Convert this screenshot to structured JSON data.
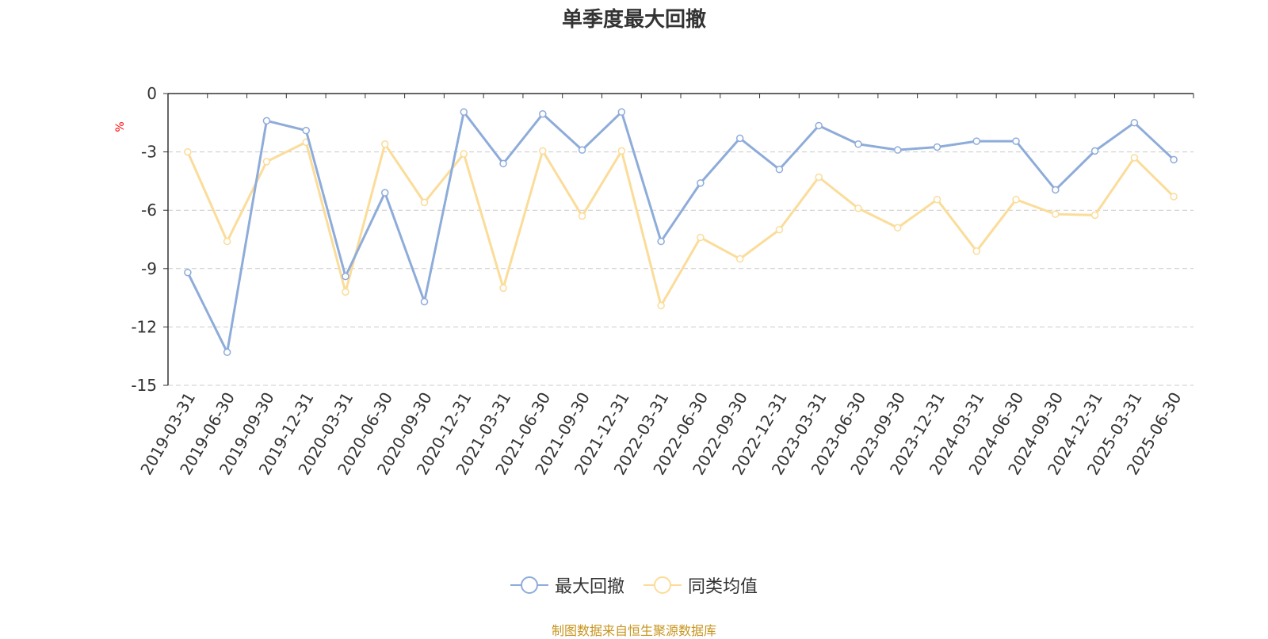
{
  "title": "单季度最大回撤",
  "source_note": "制图数据来自恒生聚源数据库",
  "colors": {
    "series1": "#8eacda",
    "series2": "#fbdc99",
    "grid": "#cccccc",
    "axis": "#333333",
    "unit": "#ff0000",
    "source": "#c8951e"
  },
  "chart_data": {
    "type": "line",
    "title": "单季度最大回撤",
    "ylabel": "%",
    "ylim": [
      -15,
      0
    ],
    "yticks": [
      0,
      -3,
      -6,
      -9,
      -12,
      -15
    ],
    "grid": "horizontal dashed",
    "legend_position": "bottom",
    "x": [
      "2019-03-31",
      "2019-06-30",
      "2019-09-30",
      "2019-12-31",
      "2020-03-31",
      "2020-06-30",
      "2020-09-30",
      "2020-12-31",
      "2021-03-31",
      "2021-06-30",
      "2021-09-30",
      "2021-12-31",
      "2022-03-31",
      "2022-06-30",
      "2022-09-30",
      "2022-12-31",
      "2023-03-31",
      "2023-06-30",
      "2023-09-30",
      "2023-12-31",
      "2024-03-31",
      "2024-06-30",
      "2024-09-30",
      "2024-12-31",
      "2025-03-31",
      "2025-06-30"
    ],
    "series": [
      {
        "name": "最大回撤",
        "values": [
          -9.2,
          -13.3,
          -1.4,
          -1.9,
          -9.4,
          -5.1,
          -10.7,
          -0.95,
          -3.6,
          -1.05,
          -2.9,
          -0.95,
          -7.6,
          -4.6,
          -2.3,
          -3.9,
          -1.65,
          -2.6,
          -2.9,
          -2.75,
          -2.45,
          -2.45,
          -4.95,
          -2.95,
          -1.5,
          -3.4
        ]
      },
      {
        "name": "同类均值",
        "values": [
          -3.0,
          -7.6,
          -3.5,
          -2.5,
          -10.2,
          -2.6,
          -5.6,
          -3.1,
          -10.0,
          -2.95,
          -6.3,
          -2.95,
          -10.9,
          -7.4,
          -8.5,
          -7.0,
          -4.3,
          -5.9,
          -6.9,
          -5.45,
          -8.1,
          -5.45,
          -6.2,
          -6.25,
          -3.3,
          -5.3
        ]
      }
    ]
  }
}
